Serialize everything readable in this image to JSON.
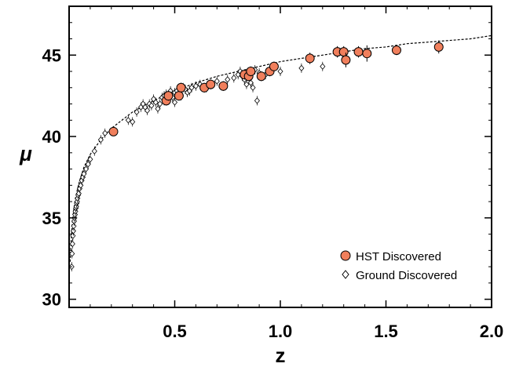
{
  "chart_data": {
    "type": "scatter",
    "title": "",
    "xlabel": "z",
    "ylabel": "μ",
    "xlim": [
      0.0,
      2.0
    ],
    "ylim": [
      29.5,
      48.0
    ],
    "x_ticks": [
      0.5,
      1.0,
      1.5,
      2.0
    ],
    "x_tick_labels": [
      "0.5",
      "1.0",
      "1.5",
      "2.0"
    ],
    "y_ticks": [
      30,
      35,
      40,
      45
    ],
    "y_tick_labels": [
      "30",
      "35",
      "40",
      "45"
    ],
    "grid": false,
    "legend_position": "bottom-right",
    "colors": {
      "hst_fill": "#f07f5c",
      "ground_fill": "#ffffff",
      "marker_edge": "#000000",
      "fit_line": "#000000"
    },
    "series": [
      {
        "name": "HST Discovered",
        "marker": "circle",
        "x": [
          0.21,
          0.46,
          0.47,
          0.52,
          0.53,
          0.64,
          0.67,
          0.73,
          0.83,
          0.85,
          0.86,
          0.91,
          0.95,
          0.97,
          1.14,
          1.27,
          1.3,
          1.31,
          1.37,
          1.41,
          1.55,
          1.75
        ],
        "y": [
          40.3,
          42.2,
          42.5,
          42.5,
          43.0,
          43.0,
          43.2,
          43.1,
          43.8,
          43.7,
          44.0,
          43.7,
          44.0,
          44.3,
          44.8,
          45.2,
          45.2,
          44.7,
          45.2,
          45.1,
          45.3,
          45.5
        ],
        "y_err": [
          0.15,
          0.3,
          0.3,
          0.3,
          0.3,
          0.3,
          0.3,
          0.3,
          0.3,
          0.3,
          0.3,
          0.3,
          0.3,
          0.3,
          0.35,
          0.35,
          0.35,
          0.45,
          0.35,
          0.5,
          0.3,
          0.4
        ]
      },
      {
        "name": "Ground Discovered",
        "marker": "diamond",
        "x": [
          0.012,
          0.014,
          0.016,
          0.018,
          0.02,
          0.022,
          0.024,
          0.026,
          0.028,
          0.03,
          0.032,
          0.034,
          0.036,
          0.038,
          0.04,
          0.043,
          0.046,
          0.05,
          0.055,
          0.06,
          0.065,
          0.07,
          0.08,
          0.09,
          0.1,
          0.12,
          0.15,
          0.17,
          0.28,
          0.3,
          0.32,
          0.34,
          0.35,
          0.36,
          0.37,
          0.38,
          0.39,
          0.4,
          0.41,
          0.42,
          0.43,
          0.44,
          0.45,
          0.45,
          0.46,
          0.47,
          0.48,
          0.49,
          0.5,
          0.5,
          0.51,
          0.52,
          0.53,
          0.54,
          0.55,
          0.56,
          0.57,
          0.58,
          0.6,
          0.62,
          0.65,
          0.7,
          0.75,
          0.78,
          0.8,
          0.81,
          0.82,
          0.83,
          0.84,
          0.86,
          0.87,
          0.88,
          0.89,
          0.9,
          0.93,
          1.0,
          1.1,
          1.2
        ],
        "y": [
          32.0,
          32.8,
          33.4,
          33.9,
          34.2,
          34.5,
          34.8,
          35.0,
          35.2,
          35.4,
          35.6,
          35.7,
          35.9,
          36.0,
          36.2,
          36.4,
          36.5,
          36.8,
          37.0,
          37.3,
          37.5,
          37.7,
          38.0,
          38.3,
          38.6,
          39.1,
          39.8,
          40.2,
          41.0,
          40.9,
          41.5,
          41.8,
          42.0,
          41.8,
          41.6,
          42.0,
          41.9,
          42.3,
          42.1,
          41.7,
          42.0,
          42.4,
          42.5,
          42.2,
          42.6,
          42.3,
          42.8,
          42.4,
          42.7,
          42.1,
          42.8,
          42.6,
          42.5,
          43.0,
          42.9,
          42.7,
          42.8,
          43.0,
          43.1,
          43.2,
          43.0,
          43.4,
          43.5,
          43.6,
          43.8,
          44.0,
          43.7,
          43.5,
          43.2,
          43.3,
          43.0,
          44.1,
          42.2,
          43.9,
          43.8,
          44.0,
          44.2,
          44.3
        ]
      }
    ],
    "fit_line": {
      "x": [
        0.005,
        0.01,
        0.015,
        0.02,
        0.03,
        0.04,
        0.05,
        0.07,
        0.1,
        0.15,
        0.2,
        0.3,
        0.4,
        0.5,
        0.6,
        0.7,
        0.8,
        0.9,
        1.0,
        1.1,
        1.2,
        1.3,
        1.4,
        1.5,
        1.6,
        1.7,
        1.8,
        1.9,
        2.0
      ],
      "y": [
        32.3,
        33.7,
        34.6,
        35.3,
        36.2,
        36.8,
        37.3,
        38.1,
        38.9,
        39.8,
        40.5,
        41.5,
        42.2,
        42.8,
        43.3,
        43.7,
        44.0,
        44.3,
        44.6,
        44.8,
        45.0,
        45.2,
        45.4,
        45.5,
        45.7,
        45.8,
        45.9,
        46.0,
        46.2
      ]
    }
  }
}
